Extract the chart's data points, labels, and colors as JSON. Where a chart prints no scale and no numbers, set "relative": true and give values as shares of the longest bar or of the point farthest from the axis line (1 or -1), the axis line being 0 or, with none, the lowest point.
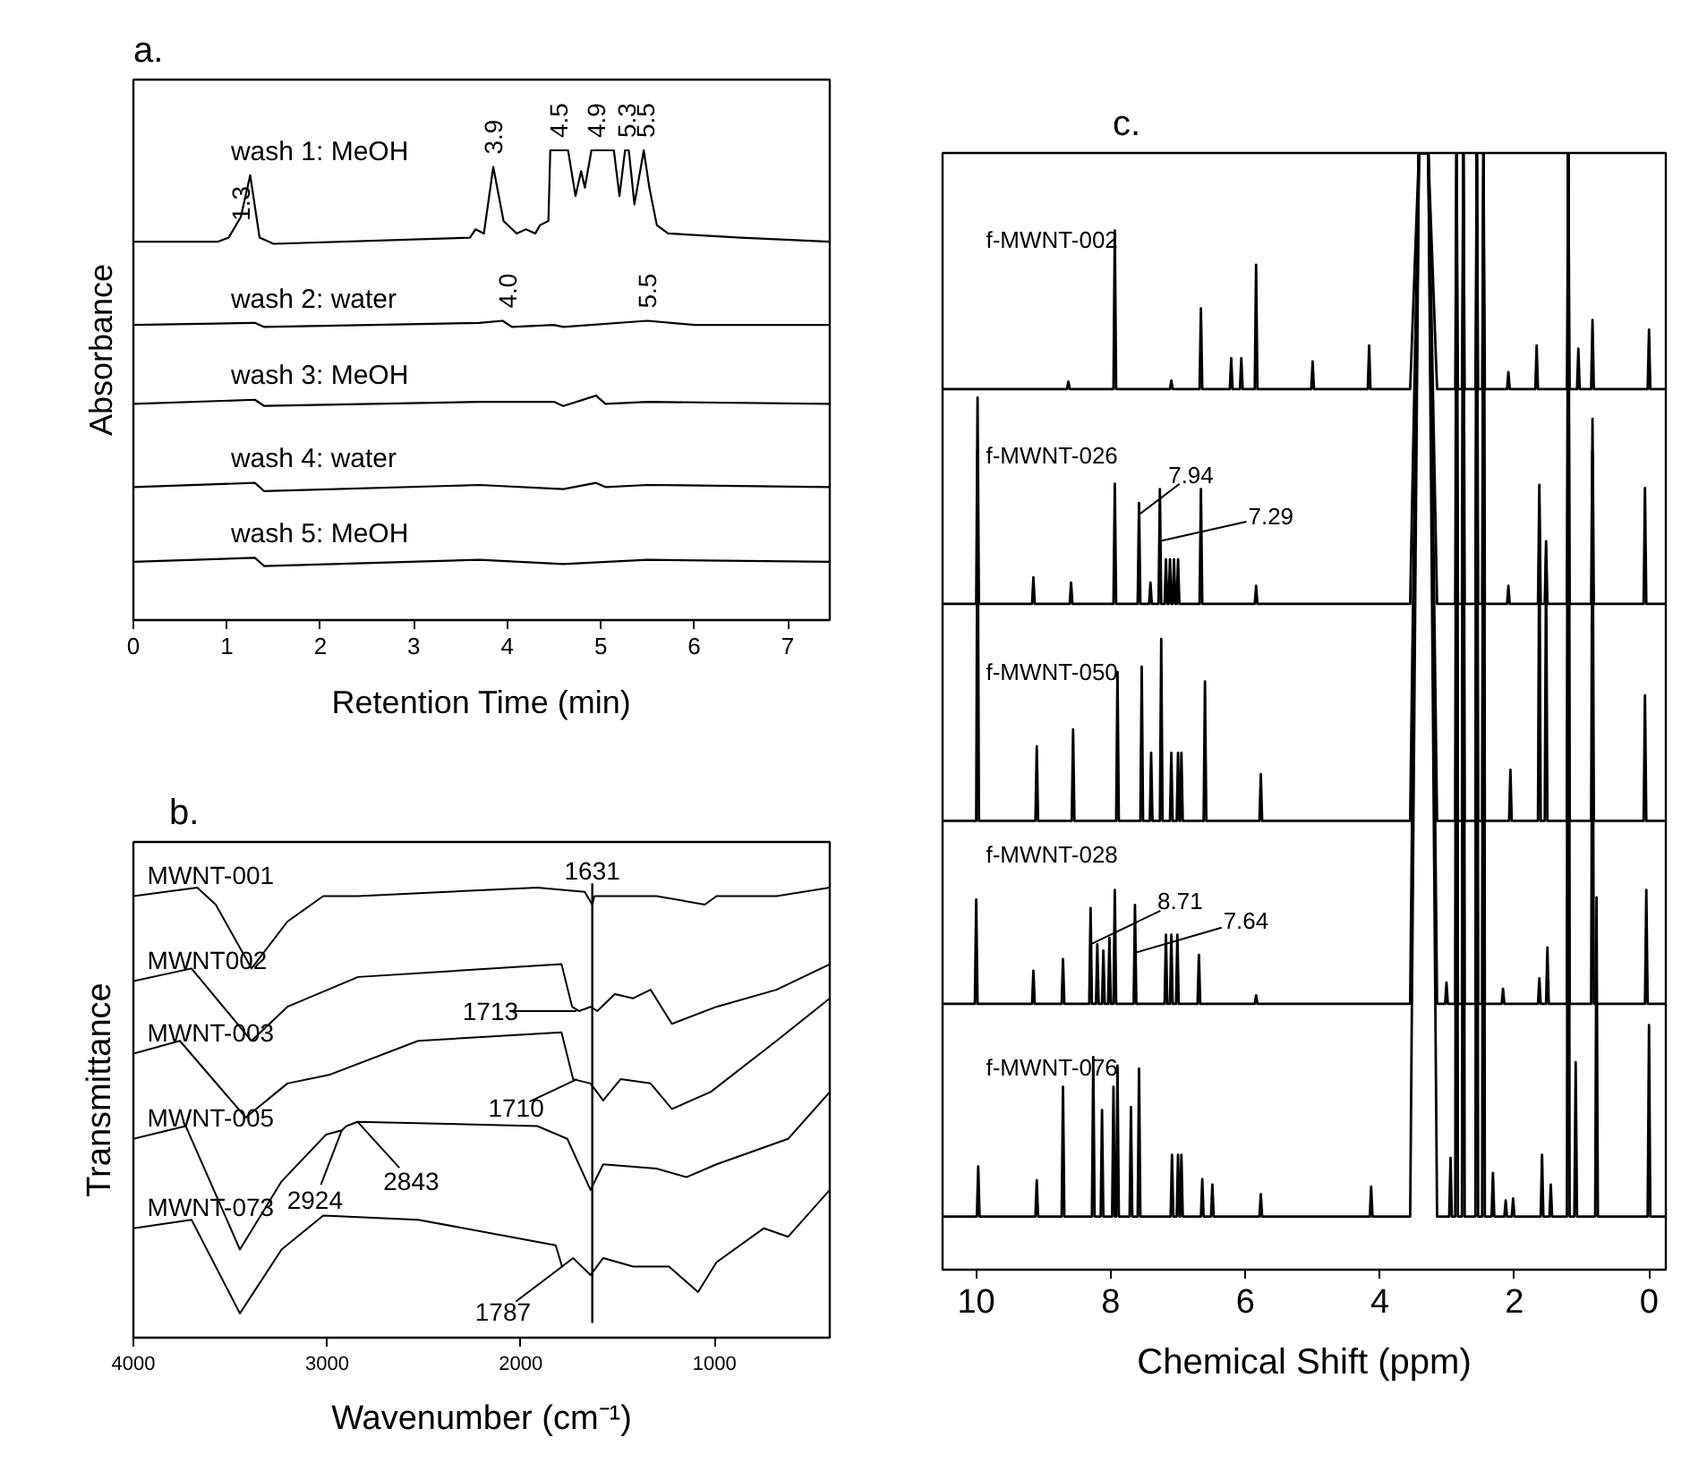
{
  "chart_data": [
    {
      "type": "line",
      "title": "a.",
      "xlabel": "Retention Time (min)",
      "ylabel": "Absorbance",
      "relative": true,
      "tick_labels": "x",
      "xlim": [
        0,
        7.45
      ],
      "xticks": [
        0,
        1,
        2,
        3,
        4,
        5,
        6,
        7
      ],
      "series": [
        {
          "name": "wash 1: MeOH",
          "color": "#000000",
          "x": [
            0,
            0.9,
            1.02,
            1.15,
            1.25,
            1.35,
            1.5,
            3.6,
            3.66,
            3.75,
            3.85,
            3.96,
            4.1,
            4.2,
            4.3,
            4.35,
            4.44,
            4.46,
            4.65,
            4.73,
            4.79,
            4.83,
            4.9,
            5.14,
            5.2,
            5.26,
            5.3,
            5.36,
            5.46,
            5.52,
            5.6,
            5.72,
            6.5,
            7.45
          ],
          "values": [
            0.78,
            0.78,
            0.79,
            0.84,
            0.94,
            0.79,
            0.775,
            0.79,
            0.81,
            0.8,
            0.96,
            0.83,
            0.8,
            0.81,
            0.8,
            0.82,
            0.83,
            1.0,
            1.0,
            0.89,
            0.95,
            0.91,
            1.0,
            1.0,
            0.89,
            1.0,
            1.0,
            0.87,
            1.0,
            0.91,
            0.82,
            0.8,
            0.79,
            0.78
          ]
        },
        {
          "name": "wash 2: water",
          "color": "#000000",
          "x": [
            0,
            1.3,
            1.4,
            3.7,
            3.95,
            4.05,
            4.5,
            4.6,
            5.5,
            6.0,
            7.45
          ],
          "values": [
            0.58,
            0.585,
            0.575,
            0.585,
            0.59,
            0.575,
            0.58,
            0.575,
            0.59,
            0.58,
            0.58
          ]
        },
        {
          "name": "wash 3: MeOH",
          "color": "#000000",
          "x": [
            0,
            1.3,
            1.4,
            3.7,
            4.5,
            4.55,
            4.6,
            4.95,
            5.05,
            5.5,
            7.45
          ],
          "values": [
            0.39,
            0.4,
            0.385,
            0.395,
            0.395,
            0.39,
            0.385,
            0.41,
            0.39,
            0.395,
            0.39
          ]
        },
        {
          "name": "wash 4: water",
          "color": "#000000",
          "x": [
            0,
            1.3,
            1.4,
            3.7,
            4.6,
            4.95,
            5.05,
            5.5,
            7.45
          ],
          "values": [
            0.19,
            0.2,
            0.18,
            0.195,
            0.185,
            0.2,
            0.19,
            0.195,
            0.19
          ]
        },
        {
          "name": "wash 5: MeOH",
          "color": "#000000",
          "x": [
            0,
            1.3,
            1.4,
            3.7,
            4.6,
            5.5,
            7.45
          ],
          "values": [
            0.01,
            0.02,
            0,
            0.015,
            0.005,
            0.015,
            0.01
          ]
        }
      ],
      "annotations": [
        {
          "text": "1.3",
          "x": 1.15,
          "y": 0.8
        },
        {
          "text": "3.9",
          "x": 3.85,
          "y": 0.96
        },
        {
          "text": "4.5",
          "x": 4.55,
          "y": 1.0
        },
        {
          "text": "4.9",
          "x": 4.95,
          "y": 1.0
        },
        {
          "text": "5.3",
          "x": 5.28,
          "y": 1.0
        },
        {
          "text": "5.5",
          "x": 5.48,
          "y": 1.0
        },
        {
          "text": "4.0",
          "x": 4.0,
          "y": 0.59
        },
        {
          "text": "5.5",
          "x": 5.5,
          "y": 0.59
        }
      ]
    },
    {
      "type": "line",
      "title": "b.",
      "xlabel": "Wavenumber (cm⁻¹)",
      "ylabel": "Transmittance",
      "relative": true,
      "tick_labels": "x",
      "xlim": [
        4000,
        405
      ],
      "xticks": [
        4000,
        3000,
        2000,
        1000
      ],
      "series": [
        {
          "name": "MWNT-001",
          "color": "#000000",
          "x": [
            4000,
            3670,
            3575,
            3390,
            3205,
            3020,
            2840,
            1915,
            1670,
            1631,
            1620,
            1300,
            1050,
            990,
            680,
            405
          ],
          "values": [
            0.98,
            1.0,
            0.96,
            0.81,
            0.92,
            0.98,
            0.98,
            1.0,
            0.99,
            0.96,
            0.98,
            0.98,
            0.96,
            0.98,
            0.98,
            1.0
          ]
        },
        {
          "name": "MWNT002",
          "color": "#000000",
          "x": [
            4000,
            3700,
            3390,
            3205,
            2840,
            1790,
            1735,
            1700,
            1640,
            1605,
            1515,
            1420,
            1330,
            1220,
            990,
            680,
            405
          ],
          "values": [
            0.78,
            0.81,
            0.64,
            0.72,
            0.79,
            0.82,
            0.72,
            0.71,
            0.72,
            0.71,
            0.75,
            0.74,
            0.76,
            0.68,
            0.72,
            0.76,
            0.82
          ]
        },
        {
          "name": "MWNT-003",
          "color": "#000000",
          "x": [
            4000,
            3760,
            3420,
            3205,
            2990,
            2530,
            1790,
            1730,
            1640,
            1575,
            1485,
            1330,
            1220,
            1020,
            680,
            405
          ],
          "values": [
            0.61,
            0.64,
            0.46,
            0.54,
            0.56,
            0.64,
            0.66,
            0.55,
            0.54,
            0.5,
            0.55,
            0.54,
            0.48,
            0.52,
            0.64,
            0.74
          ]
        },
        {
          "name": "MWNT-005",
          "color": "#000000",
          "x": [
            4000,
            3730,
            3450,
            3235,
            3005,
            2924,
            2900,
            2843,
            1915,
            1760,
            1640,
            1575,
            1300,
            1145,
            990,
            620,
            405
          ],
          "values": [
            0.41,
            0.44,
            0.15,
            0.31,
            0.42,
            0.43,
            0.44,
            0.45,
            0.44,
            0.41,
            0.29,
            0.35,
            0.34,
            0.32,
            0.35,
            0.41,
            0.52
          ]
        },
        {
          "name": "MWNT-073",
          "color": "#000000",
          "x": [
            4000,
            3700,
            3450,
            3235,
            3020,
            2530,
            1820,
            1787,
            1730,
            1640,
            1575,
            1420,
            1235,
            1085,
            990,
            745,
            620,
            405
          ],
          "values": [
            0.2,
            0.22,
            0,
            0.15,
            0.23,
            0.22,
            0.16,
            0.11,
            0.13,
            0.09,
            0.13,
            0.11,
            0.11,
            0.05,
            0.12,
            0.2,
            0.18,
            0.29
          ]
        }
      ],
      "ref_lines": [
        {
          "axis": "x",
          "value": 1631,
          "label": "1631",
          "color": "#000000"
        }
      ],
      "annotations": [
        {
          "text": "1713",
          "x": 1713,
          "y": 0.71
        },
        {
          "text": "1710",
          "x": 1710,
          "y": 0.55
        },
        {
          "text": "2924",
          "x": 2924,
          "y": 0.43
        },
        {
          "text": "2843",
          "x": 2843,
          "y": 0.45
        },
        {
          "text": "1787",
          "x": 1787,
          "y": 0.11
        }
      ]
    },
    {
      "type": "line",
      "title": "c.",
      "xlabel": "Chemical Shift (ppm)",
      "relative": true,
      "tick_labels": "x",
      "xlim": [
        10.5,
        -0.25
      ],
      "xticks": [
        10,
        8,
        6,
        4,
        2,
        0
      ],
      "series": [
        {
          "name": "f-MWNT-002",
          "color": "#000000",
          "x": [
            10.5,
            8.65,
            8.63,
            8.61,
            7.96,
            7.94,
            7.92,
            7.12,
            7.1,
            7.08,
            6.68,
            6.66,
            6.64,
            6.23,
            6.21,
            6.19,
            6.08,
            6.06,
            6.04,
            5.86,
            5.84,
            5.82,
            5.02,
            5.0,
            4.98,
            4.18,
            4.16,
            4.14,
            3.55,
            3.42,
            3.28,
            3.15,
            2.88,
            2.86,
            2.84,
            2.78,
            2.76,
            2.74,
            2.58,
            2.56,
            2.54,
            2.48,
            2.46,
            2.44,
            2.11,
            2.09,
            2.07,
            1.69,
            1.67,
            1.65,
            1.22,
            1.2,
            1.18,
            1.07,
            1.05,
            1.03,
            0.86,
            0.84,
            0.82,
            0.02,
            0.0,
            -0.02,
            -0.25
          ],
          "values": [
            0.778,
            0.778,
            0.785,
            0.778,
            0.778,
            0.927,
            0.778,
            0.778,
            0.786,
            0.778,
            0.778,
            0.854,
            0.778,
            0.778,
            0.807,
            0.778,
            0.778,
            0.807,
            0.778,
            0.778,
            0.895,
            0.778,
            0.778,
            0.804,
            0.778,
            0.778,
            0.819,
            0.778,
            0.778,
            1.0,
            1.0,
            0.778,
            0.778,
            1.0,
            0.778,
            0.778,
            1.0,
            0.778,
            0.778,
            1.0,
            0.778,
            0.778,
            1.0,
            0.778,
            0.778,
            0.794,
            0.778,
            0.778,
            0.819,
            0.778,
            0.778,
            1.0,
            0.778,
            0.778,
            0.816,
            0.778,
            0.778,
            0.843,
            0.778,
            0.778,
            0.834,
            0.778,
            0.778
          ]
        },
        {
          "name": "f-MWNT-026",
          "color": "#000000",
          "x": [
            10.5,
            10.0,
            9.98,
            9.96,
            9.17,
            9.15,
            9.13,
            8.61,
            8.59,
            8.57,
            7.96,
            7.94,
            7.92,
            7.6,
            7.58,
            7.56,
            7.43,
            7.41,
            7.39,
            7.29,
            7.27,
            7.25,
            7.2,
            7.18,
            7.16,
            7.14,
            7.12,
            7.1,
            7.08,
            7.06,
            7.04,
            7.02,
            7.0,
            6.98,
            6.68,
            6.66,
            6.64,
            5.86,
            5.84,
            5.82,
            3.55,
            3.42,
            3.28,
            3.15,
            2.88,
            2.86,
            2.84,
            2.78,
            2.76,
            2.74,
            2.58,
            2.56,
            2.54,
            2.48,
            2.46,
            2.44,
            2.11,
            2.09,
            2.07,
            1.65,
            1.63,
            1.61,
            1.55,
            1.53,
            1.51,
            1.22,
            1.2,
            1.18,
            0.86,
            0.84,
            0.82,
            0.08,
            0.06,
            0.04,
            -0.25
          ],
          "values": [
            0.576,
            0.576,
            0.77,
            0.576,
            0.576,
            0.601,
            0.576,
            0.576,
            0.596,
            0.576,
            0.576,
            0.689,
            0.576,
            0.576,
            0.671,
            0.576,
            0.576,
            0.596,
            0.576,
            0.576,
            0.684,
            0.576,
            0.576,
            0.618,
            0.576,
            0.576,
            0.618,
            0.576,
            0.576,
            0.618,
            0.576,
            0.576,
            0.618,
            0.576,
            0.576,
            0.684,
            0.576,
            0.576,
            0.593,
            0.576,
            0.576,
            1.0,
            1.0,
            0.576,
            0.576,
            1.0,
            0.576,
            0.576,
            1.0,
            0.576,
            0.576,
            1.0,
            0.576,
            0.576,
            1.0,
            0.576,
            0.576,
            0.593,
            0.576,
            0.576,
            0.688,
            0.576,
            0.576,
            0.635,
            0.576,
            0.576,
            1.0,
            0.576,
            0.576,
            0.75,
            0.576,
            0.576,
            0.685,
            0.576,
            0.576
          ]
        },
        {
          "name": "f-MWNT-050",
          "color": "#000000",
          "x": [
            10.5,
            10.0,
            9.98,
            9.96,
            9.12,
            9.1,
            9.08,
            8.58,
            8.56,
            8.54,
            7.92,
            7.9,
            7.88,
            7.56,
            7.54,
            7.52,
            7.42,
            7.4,
            7.38,
            7.27,
            7.25,
            7.23,
            7.12,
            7.1,
            7.08,
            7.02,
            7.0,
            6.98,
            6.97,
            6.95,
            6.93,
            6.62,
            6.6,
            6.58,
            5.79,
            5.77,
            5.75,
            3.55,
            3.42,
            3.28,
            3.15,
            2.88,
            2.86,
            2.84,
            2.78,
            2.76,
            2.74,
            2.58,
            2.56,
            2.54,
            2.48,
            2.46,
            2.44,
            2.08,
            2.06,
            2.04,
            1.65,
            1.63,
            1.61,
            1.55,
            1.53,
            1.51,
            1.22,
            1.2,
            1.18,
            0.86,
            0.84,
            0.82,
            0.08,
            0.06,
            0.04,
            -0.25
          ],
          "values": [
            0.372,
            0.372,
            0.72,
            0.372,
            0.372,
            0.442,
            0.372,
            0.372,
            0.458,
            0.372,
            0.372,
            0.512,
            0.372,
            0.372,
            0.517,
            0.372,
            0.372,
            0.436,
            0.372,
            0.372,
            0.543,
            0.372,
            0.372,
            0.436,
            0.372,
            0.372,
            0.436,
            0.372,
            0.372,
            0.436,
            0.372,
            0.372,
            0.503,
            0.372,
            0.372,
            0.416,
            0.372,
            0.372,
            1.0,
            1.0,
            0.372,
            0.372,
            1.0,
            0.372,
            0.372,
            1.0,
            0.372,
            0.372,
            1.0,
            0.372,
            0.372,
            1.0,
            0.372,
            0.372,
            0.42,
            0.372,
            0.372,
            0.67,
            0.372,
            0.372,
            0.62,
            0.372,
            0.372,
            1.0,
            0.372,
            0.372,
            0.72,
            0.372,
            0.372,
            0.49,
            0.372,
            0.372
          ]
        },
        {
          "name": "f-MWNT-028",
          "color": "#000000",
          "x": [
            10.5,
            10.02,
            10.0,
            9.98,
            9.17,
            9.15,
            9.13,
            8.73,
            8.71,
            8.69,
            8.32,
            8.3,
            8.28,
            8.22,
            8.2,
            8.18,
            8.13,
            8.11,
            8.09,
            8.04,
            8.02,
            8.0,
            7.96,
            7.94,
            7.92,
            7.66,
            7.64,
            7.62,
            7.2,
            7.18,
            7.16,
            7.12,
            7.1,
            7.08,
            7.03,
            7.01,
            6.99,
            6.71,
            6.69,
            6.67,
            5.86,
            5.84,
            5.82,
            3.55,
            3.42,
            3.28,
            3.15,
            3.03,
            3.01,
            2.99,
            2.88,
            2.86,
            2.84,
            2.78,
            2.76,
            2.74,
            2.58,
            2.56,
            2.54,
            2.48,
            2.46,
            2.44,
            2.19,
            2.17,
            2.15,
            1.65,
            1.63,
            1.61,
            1.53,
            1.51,
            1.49,
            1.22,
            1.2,
            1.18,
            0.86,
            0.84,
            0.82,
            0.06,
            0.04,
            0.02,
            -0.25
          ],
          "values": [
            0.2,
            0.2,
            0.298,
            0.2,
            0.2,
            0.231,
            0.2,
            0.2,
            0.242,
            0.2,
            0.2,
            0.29,
            0.2,
            0.2,
            0.256,
            0.2,
            0.2,
            0.25,
            0.2,
            0.2,
            0.262,
            0.2,
            0.2,
            0.307,
            0.2,
            0.2,
            0.293,
            0.2,
            0.2,
            0.265,
            0.2,
            0.2,
            0.265,
            0.2,
            0.2,
            0.265,
            0.2,
            0.2,
            0.246,
            0.2,
            0.2,
            0.208,
            0.2,
            0.2,
            1.0,
            1.0,
            0.2,
            0.2,
            0.22,
            0.2,
            0.2,
            1.0,
            0.2,
            0.2,
            1.0,
            0.2,
            0.2,
            1.0,
            0.2,
            0.2,
            1.0,
            0.2,
            0.2,
            0.214,
            0.2,
            0.2,
            0.224,
            0.2,
            0.2,
            0.253,
            0.2,
            0.2,
            1.0,
            0.2,
            0.2,
            0.6,
            0.2,
            0.2,
            0.307,
            0.2,
            0.2
          ]
        },
        {
          "name": "f-MWNT-076",
          "color": "#000000",
          "x": [
            10.5,
            9.99,
            9.97,
            9.95,
            9.12,
            9.1,
            9.08,
            8.73,
            8.71,
            8.69,
            8.28,
            8.26,
            8.24,
            8.15,
            8.13,
            8.11,
            7.98,
            7.96,
            7.94,
            7.92,
            7.9,
            7.88,
            7.72,
            7.7,
            7.68,
            7.6,
            7.58,
            7.56,
            7.11,
            7.09,
            7.07,
            7.02,
            7.0,
            6.98,
            6.97,
            6.95,
            6.93,
            6.66,
            6.64,
            6.62,
            6.51,
            6.49,
            6.47,
            5.79,
            5.77,
            5.75,
            4.15,
            4.13,
            4.11,
            3.55,
            3.42,
            3.28,
            3.15,
            2.97,
            2.95,
            2.93,
            2.88,
            2.86,
            2.84,
            2.78,
            2.76,
            2.74,
            2.58,
            2.56,
            2.54,
            2.48,
            2.46,
            2.44,
            2.34,
            2.32,
            2.3,
            2.15,
            2.13,
            2.11,
            2.04,
            2.02,
            2.0,
            1.61,
            1.59,
            1.57,
            1.48,
            1.46,
            1.44,
            1.22,
            1.2,
            1.18,
            1.11,
            1.09,
            1.07,
            0.8,
            0.78,
            0.76,
            0.02,
            0.0,
            -0.02,
            -0.25
          ],
          "values": [
            0,
            0,
            0.047,
            0,
            0,
            0.034,
            0,
            0,
            0.122,
            0,
            0,
            0.15,
            0,
            0,
            0.1,
            0,
            0,
            0.122,
            0,
            0,
            0.142,
            0,
            0,
            0.103,
            0,
            0,
            0.139,
            0,
            0,
            0.058,
            0,
            0,
            0.058,
            0,
            0,
            0.058,
            0,
            0,
            0.035,
            0,
            0,
            0.03,
            0,
            0,
            0.021,
            0,
            0,
            0.028,
            0,
            0,
            1.0,
            1.0,
            0,
            0,
            0.055,
            0,
            0,
            1.0,
            0,
            0,
            1.0,
            0,
            0,
            1.0,
            0,
            0,
            1.0,
            0,
            0,
            0.041,
            0,
            0,
            0.015,
            0,
            0,
            0.017,
            0,
            0,
            0.058,
            0,
            0,
            0.03,
            0,
            0,
            1.0,
            0,
            0,
            0.145,
            0,
            0,
            0.3,
            0,
            0,
            0.18,
            0,
            0
          ]
        }
      ],
      "annotations": [
        {
          "text": "7.94",
          "x": 7.58,
          "y": 0.66
        },
        {
          "text": "7.29",
          "x": 7.27,
          "y": 0.635
        },
        {
          "text": "8.71",
          "x": 8.3,
          "y": 0.256
        },
        {
          "text": "7.64",
          "x": 7.64,
          "y": 0.248
        }
      ]
    }
  ]
}
